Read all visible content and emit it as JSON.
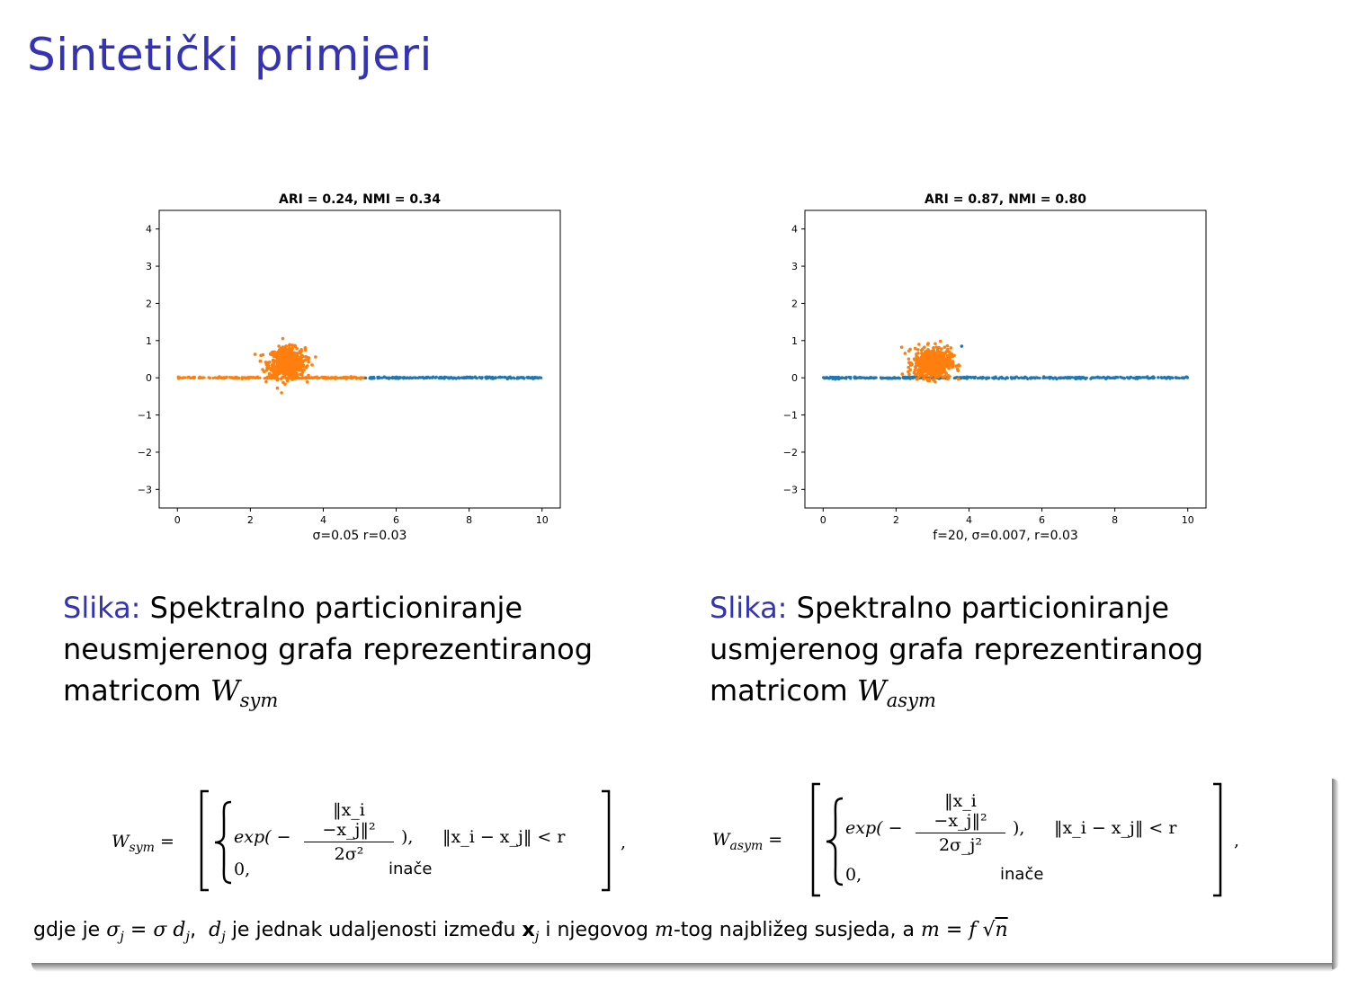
{
  "title": "Sintetički primjeri",
  "chart_data": [
    {
      "type": "scatter",
      "title": "ARI = 0.24,    NMI = 0.34",
      "xlabel": "σ=0.05  r=0.03",
      "ylabel": "",
      "xlim": [
        -0.5,
        10.5
      ],
      "ylim": [
        -3.5,
        4.5
      ],
      "xticks": [
        0,
        2,
        4,
        6,
        8,
        10
      ],
      "yticks": [
        -3,
        -2,
        -1,
        0,
        1,
        2,
        3,
        4
      ],
      "grid": false,
      "series": [
        {
          "color": "#ff7f0e",
          "parts": [
            {
              "shape": "line-segment",
              "x": [
                0,
                5.15
              ],
              "y": 0
            },
            {
              "shape": "gaussian-blob",
              "center": [
                3.0,
                0.4
              ],
              "std": [
                0.25,
                0.2
              ]
            }
          ]
        },
        {
          "color": "#1f77b4",
          "parts": [
            {
              "shape": "line-segment",
              "x": [
                5.15,
                10
              ],
              "y": 0
            }
          ]
        }
      ]
    },
    {
      "type": "scatter",
      "title": "ARI = 0.87,    NMI = 0.80",
      "xlabel": "f=20,  σ=0.007,  r=0.03",
      "ylabel": "",
      "xlim": [
        -0.5,
        10.5
      ],
      "ylim": [
        -3.5,
        4.5
      ],
      "xticks": [
        0,
        2,
        4,
        6,
        8,
        10
      ],
      "yticks": [
        -3,
        -2,
        -1,
        0,
        1,
        2,
        3,
        4
      ],
      "grid": false,
      "series": [
        {
          "color": "#1f77b4",
          "parts": [
            {
              "shape": "line-segment",
              "x": [
                0,
                10
              ],
              "y": 0
            },
            {
              "shape": "outlier",
              "x": 3.8,
              "y": 0.85
            }
          ]
        },
        {
          "color": "#ff7f0e",
          "parts": [
            {
              "shape": "gaussian-blob",
              "center": [
                3.0,
                0.4
              ],
              "std": [
                0.25,
                0.2
              ]
            }
          ]
        }
      ]
    }
  ],
  "captions": [
    {
      "label": "Slika:",
      "line1": "Spektralno particioniranje",
      "line2": "neusmjerenog grafa reprezentiranog",
      "line3": "matricom",
      "sym": "W",
      "sub": "sym"
    },
    {
      "label": "Slika:",
      "line1": "Spektralno particioniranje",
      "line2": "usmjerenog grafa reprezentiranog",
      "line3": "matricom",
      "sym": "W",
      "sub": "asym"
    }
  ],
  "formulas": [
    {
      "lhs": "W",
      "lhs_sub": "sym",
      "exp": "exp( −",
      "num": "‖x_i −x_j‖²",
      "den": "2σ²",
      "close": "),",
      "cond": "‖x_i − x_j‖ < r",
      "zero": "0,",
      "else": "inače",
      "tail": ","
    },
    {
      "lhs": "W",
      "lhs_sub": "asym",
      "exp": "exp( −",
      "num": "‖x_i −x_j‖²",
      "den": "2σ_j²",
      "close": "),",
      "cond": "‖x_i − x_j‖ < r",
      "zero": "0,",
      "else": "inače",
      "tail": ","
    }
  ],
  "footnote": {
    "prefix": "gdje je",
    "text1": "je jednak udaljenosti između",
    "text2": "i njegovog",
    "text3": "-tog najbližeg susjeda, a"
  },
  "colors": {
    "title": "#3333b3",
    "orange": "#ff7f0e",
    "blue": "#1f77b4"
  }
}
